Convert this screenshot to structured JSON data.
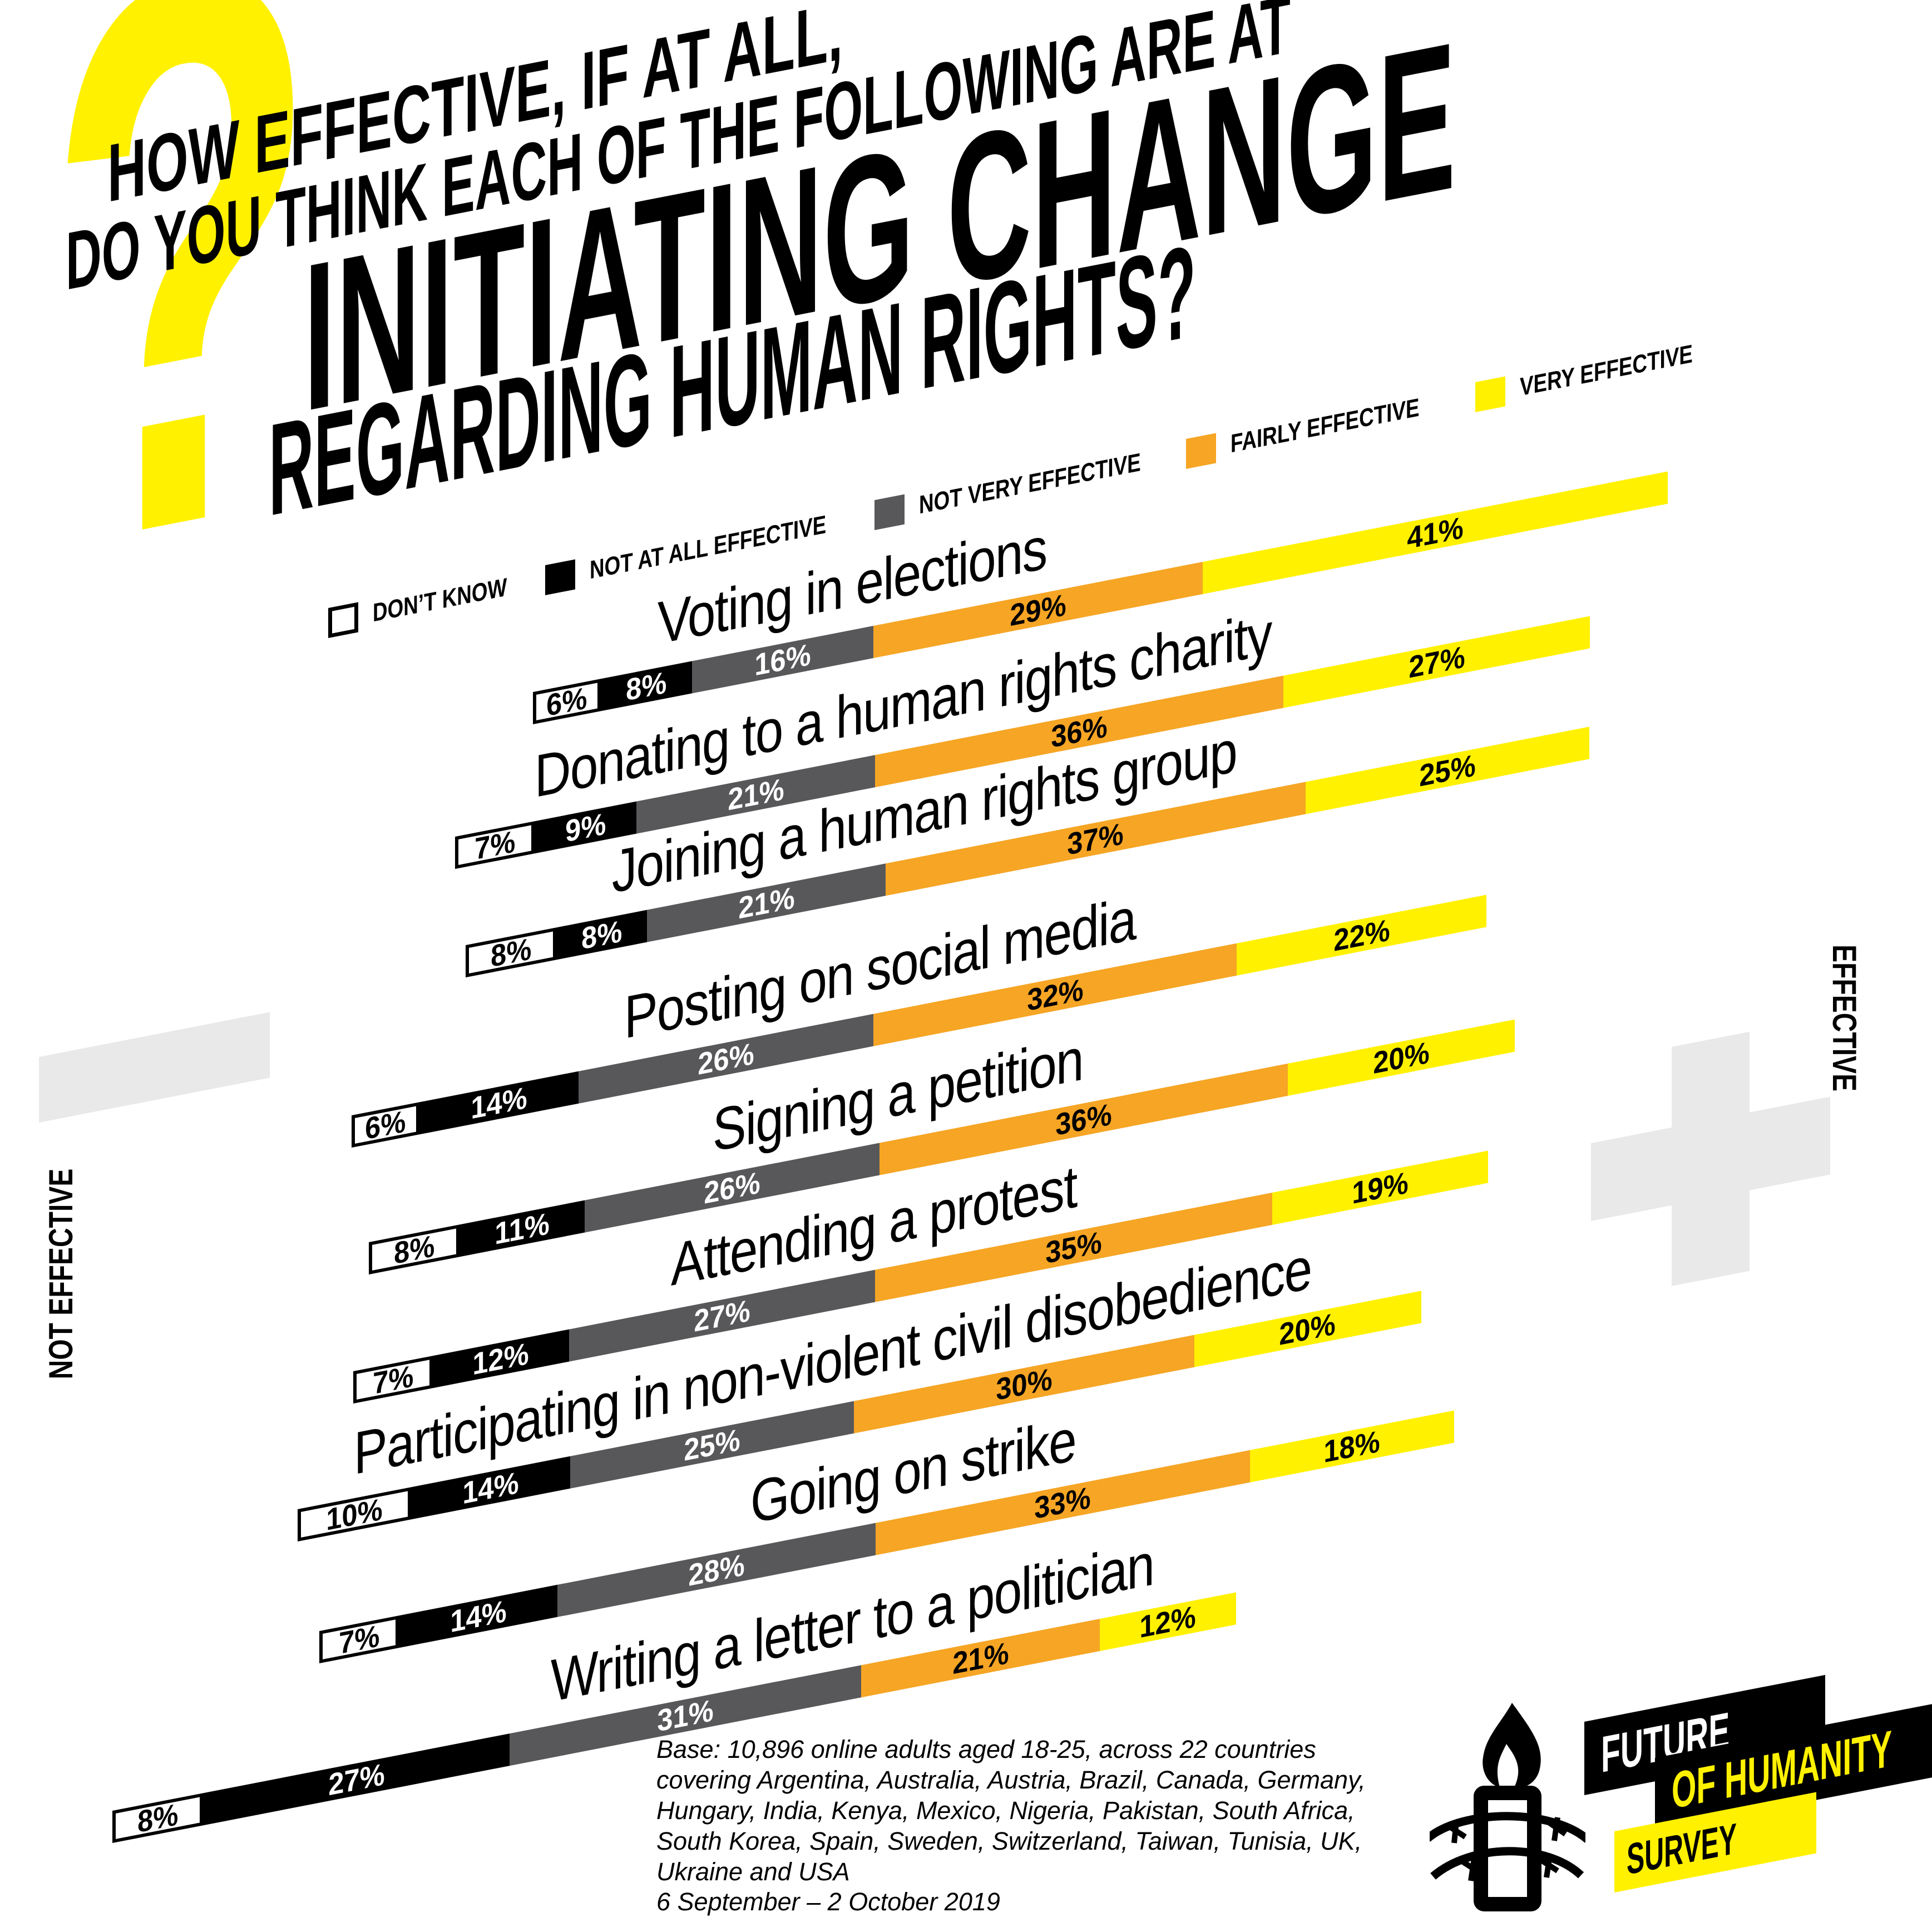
{
  "title": {
    "question_mark": "?",
    "line1": "HOW EFFECTIVE, IF AT ALL,",
    "line2": "DO YOU THINK EACH OF THE FOLLOWING ARE AT",
    "line3": "INITIATING CHANGE",
    "line4": "REGARDING HUMAN RIGHTS?"
  },
  "legend": [
    {
      "label": "DON’T KNOW",
      "key": "dont-know",
      "color": "#FFFFFF"
    },
    {
      "label": "NOT AT ALL EFFECTIVE",
      "key": "not-at-all-effective",
      "color": "#000000"
    },
    {
      "label": "NOT VERY EFFECTIVE",
      "key": "not-very-effective",
      "color": "#58585B"
    },
    {
      "label": "FAIRLY EFFECTIVE",
      "key": "fairly-effective",
      "color": "#F6A524"
    },
    {
      "label": "VERY EFFECTIVE",
      "key": "very-effective",
      "color": "#FFF100"
    }
  ],
  "axes": {
    "left_label": "NOT EFFECTIVE",
    "right_label": "EFFECTIVE",
    "left_symbol": "minus",
    "right_symbol": "plus"
  },
  "chart_data": {
    "type": "bar",
    "stacked": true,
    "orientation": "horizontal-diagonal",
    "unit": "%",
    "title": "HOW EFFECTIVE, IF AT ALL, DO YOU THINK EACH OF THE FOLLOWING ARE AT INITIATING CHANGE REGARDING HUMAN RIGHTS?",
    "categories": [
      "Voting in elections",
      "Donating to a human rights charity",
      "Joining a human rights group",
      "Posting on social media",
      "Signing a petition",
      "Attending a protest",
      "Participating in non-violent civil disobedience",
      "Going on strike",
      "Writing a letter to a politician"
    ],
    "series": [
      {
        "name": "Don’t know",
        "key": "dont-know",
        "color": "#FFFFFF",
        "values": [
          6,
          7,
          8,
          6,
          8,
          7,
          10,
          7,
          8
        ]
      },
      {
        "name": "Not at all effective",
        "key": "not-at-all-effective",
        "color": "#000000",
        "values": [
          8,
          9,
          8,
          14,
          11,
          12,
          14,
          14,
          27
        ]
      },
      {
        "name": "Not very effective",
        "key": "not-very-effective",
        "color": "#58585B",
        "values": [
          16,
          21,
          21,
          26,
          26,
          27,
          25,
          28,
          31
        ]
      },
      {
        "name": "Fairly effective",
        "key": "fairly-effective",
        "color": "#F6A524",
        "values": [
          29,
          36,
          37,
          32,
          36,
          35,
          30,
          33,
          21
        ]
      },
      {
        "name": "Very effective",
        "key": "very-effective",
        "color": "#FFF100",
        "values": [
          41,
          27,
          25,
          22,
          20,
          19,
          20,
          18,
          12
        ]
      }
    ],
    "legend_position": "top",
    "axis_annotations": {
      "left": "NOT EFFECTIVE (−)",
      "right": "EFFECTIVE (+)"
    }
  },
  "footnote": {
    "lines": [
      "Base: 10,896 online adults aged 18-25, across 22 countries",
      "covering Argentina, Australia, Austria, Brazil, Canada, Germany,",
      "Hungary, India, Kenya, Mexico, Nigeria, Pakistan, South Africa,",
      "South Korea, Spain, Sweden, Switzerland, Taiwan, Tunisia, UK,",
      "Ukraine and USA",
      "6 September – 2 October 2019"
    ]
  },
  "logo": {
    "future": "FUTURE",
    "of_humanity": "OF HUMANITY",
    "survey": "SURVEY"
  },
  "colors": {
    "yellow": "#FFF100",
    "orange": "#F6A524",
    "dark_gray": "#58585B",
    "light_gray": "#E9E9E9",
    "black": "#000000",
    "white": "#FFFFFF"
  }
}
